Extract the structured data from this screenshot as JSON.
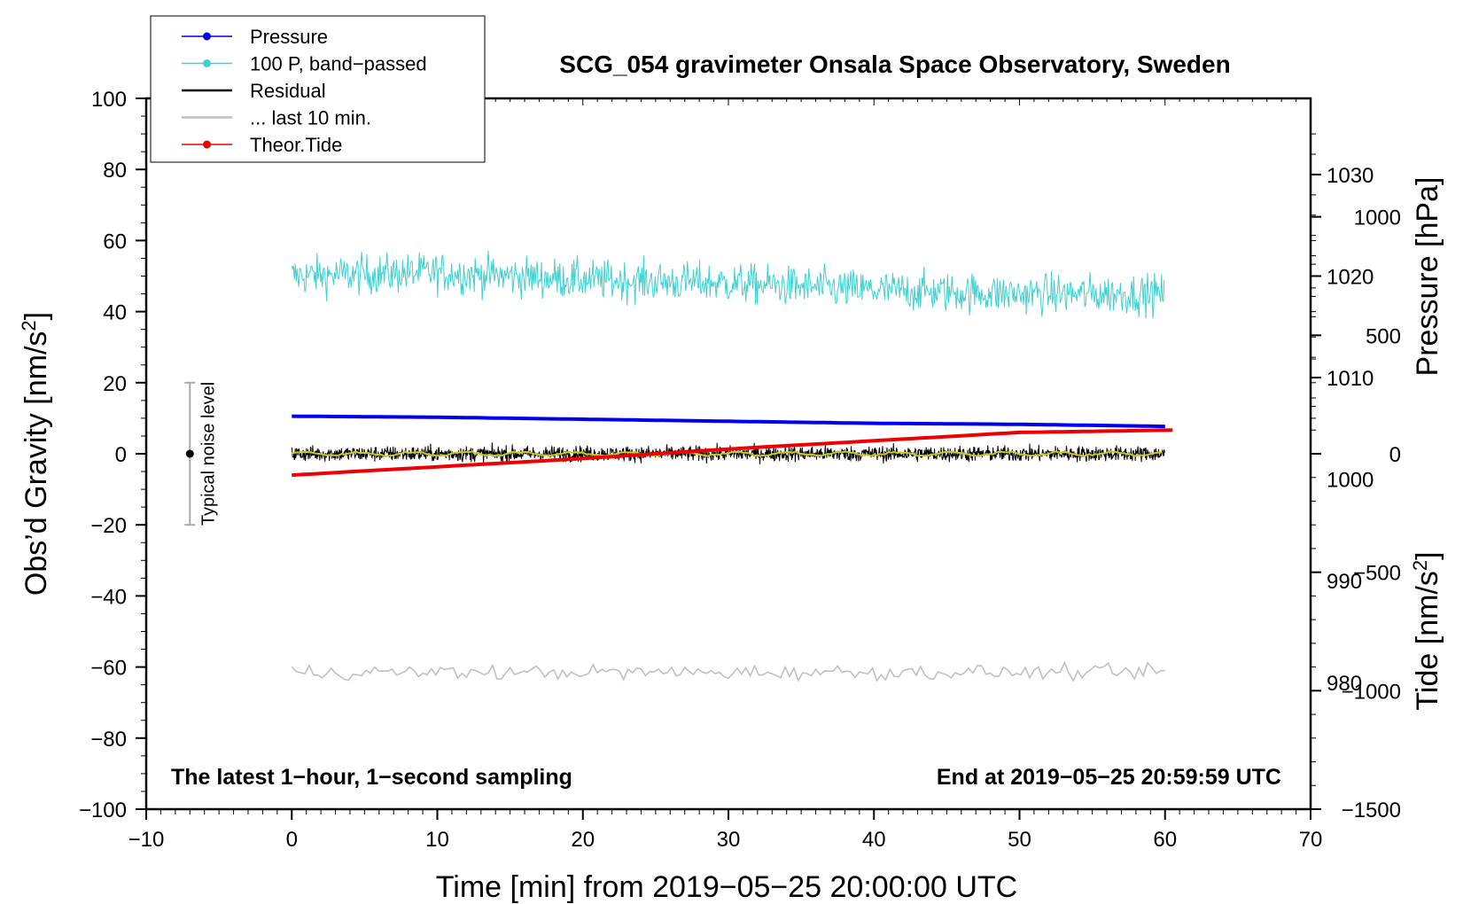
{
  "chart_data": {
    "type": "line",
    "title": "SCG_054 gravimeter Onsala Space Observatory, Sweden",
    "xlabel": "Time [min] from 2019−05−25 20:00:00 UTC",
    "ylabel_left": "Obs’d Gravity [nm/s",
    "ylabel_left_sup": "2",
    "ylabel_left_tail": "]",
    "ylabel_right_pressure": "Pressure [hPa]",
    "ylabel_right_tide": "Tide [nm/s",
    "ylabel_right_tide_sup": "2",
    "ylabel_right_tide_tail": "]",
    "xlim": [
      -10,
      70
    ],
    "ylim": [
      -100,
      100
    ],
    "pressure_axis_range": [
      967.5,
      1037.5
    ],
    "tide_axis_range": [
      -1500,
      1500
    ],
    "x_ticks": [
      {
        "value": -10,
        "label": "−10"
      },
      {
        "value": 0,
        "label": "0"
      },
      {
        "value": 10,
        "label": "10"
      },
      {
        "value": 20,
        "label": "20"
      },
      {
        "value": 30,
        "label": "30"
      },
      {
        "value": 40,
        "label": "40"
      },
      {
        "value": 50,
        "label": "50"
      },
      {
        "value": 60,
        "label": "60"
      },
      {
        "value": 70,
        "label": "70"
      }
    ],
    "y_ticks": [
      {
        "value": 100,
        "label": "100"
      },
      {
        "value": 80,
        "label": "80"
      },
      {
        "value": 60,
        "label": "60"
      },
      {
        "value": 40,
        "label": "40"
      },
      {
        "value": 20,
        "label": "20"
      },
      {
        "value": 0,
        "label": "0"
      },
      {
        "value": -20,
        "label": "−20"
      },
      {
        "value": -40,
        "label": "−40"
      },
      {
        "value": -60,
        "label": "−60"
      },
      {
        "value": -80,
        "label": "−80"
      },
      {
        "value": -100,
        "label": "−100"
      }
    ],
    "pressure_ticks": [
      {
        "value": 1030,
        "label": "1030"
      },
      {
        "value": 1020,
        "label": "1020"
      },
      {
        "value": 1010,
        "label": "1010"
      },
      {
        "value": 1000,
        "label": "1000"
      },
      {
        "value": 990,
        "label": "990"
      },
      {
        "value": 980,
        "label": "980"
      }
    ],
    "tide_ticks": [
      {
        "value": 1000,
        "label": "1000"
      },
      {
        "value": 500,
        "label": "500"
      },
      {
        "value": 0,
        "label": "0"
      },
      {
        "value": -500,
        "label": "−500"
      },
      {
        "value": -1000,
        "label": "−1000"
      },
      {
        "value": -1500,
        "label": "−1500"
      }
    ],
    "series": [
      {
        "name": "Pressure",
        "color": "#0000ee",
        "unit": "hPa",
        "x": [
          0,
          10,
          20,
          30,
          40,
          50,
          60
        ],
        "values": [
          1006.2,
          1006.1,
          1005.9,
          1005.7,
          1005.5,
          1005.4,
          1005.2
        ]
      },
      {
        "name": "100 P, band−passed",
        "color": "#40d0d0",
        "unit": "nm/s2",
        "center_x": [
          0,
          10,
          20,
          30,
          40,
          50,
          60
        ],
        "center_values": [
          50,
          51,
          49,
          48,
          46,
          45,
          45
        ],
        "amplitude": 6
      },
      {
        "name": "Residual",
        "color": "#000000",
        "unit": "nm/s2",
        "center_x": [
          0,
          10,
          20,
          30,
          40,
          50,
          60
        ],
        "center_values": [
          0,
          0,
          0,
          0,
          0,
          0,
          0
        ],
        "amplitude": 2.5
      },
      {
        "name": "... last 10 min.",
        "color": "#c0c0c0",
        "unit": "nm/s2",
        "center_x": [
          0,
          10,
          20,
          30,
          40,
          50,
          60
        ],
        "center_values": [
          -61.5,
          -61.5,
          -61.5,
          -61.5,
          -61.5,
          -61.5,
          -61.5
        ],
        "amplitude": 2.5
      },
      {
        "name": "Theor.Tide",
        "color": "#ee0000",
        "unit": "nm/s2",
        "x": [
          0,
          10,
          20,
          30,
          40,
          50,
          60.5
        ],
        "values": [
          -90,
          -55,
          -20,
          20,
          55,
          90,
          100
        ]
      },
      {
        "name": "smoothed residual",
        "color": "#c8c820",
        "unit": "nm/s2",
        "x": [
          0,
          10,
          20,
          30,
          40,
          50,
          60
        ],
        "values": [
          0,
          0,
          0,
          0,
          0,
          0,
          0
        ]
      }
    ],
    "noise_level": {
      "label": "Typical noise level",
      "x": -7,
      "center": 0,
      "low": -20,
      "high": 20
    },
    "annotations": {
      "left": "The latest 1−hour, 1−second sampling",
      "right": "End at 2019−05−25 20:59:59 UTC"
    },
    "legend": {
      "placement": "top-left",
      "entries": [
        {
          "label": "Pressure",
          "color": "#0000ee",
          "marker": true
        },
        {
          "label": "100 P, band−passed",
          "color": "#40d0d0",
          "marker": true
        },
        {
          "label": "Residual",
          "color": "#000000",
          "marker": false
        },
        {
          "label": "... last 10 min.",
          "color": "#c0c0c0",
          "marker": false
        },
        {
          "label": "Theor.Tide",
          "color": "#ee0000",
          "marker": true
        }
      ]
    }
  }
}
